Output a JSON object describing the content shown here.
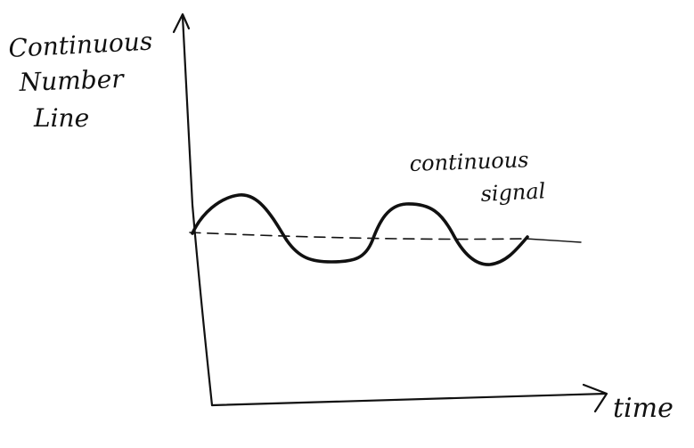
{
  "diagram": {
    "y_axis_label": [
      "Continuous",
      "Number",
      "Line"
    ],
    "x_axis_label": "time",
    "signal_label": [
      "continuous",
      "signal"
    ],
    "ink_color": "#111111",
    "background": "#ffffff"
  }
}
